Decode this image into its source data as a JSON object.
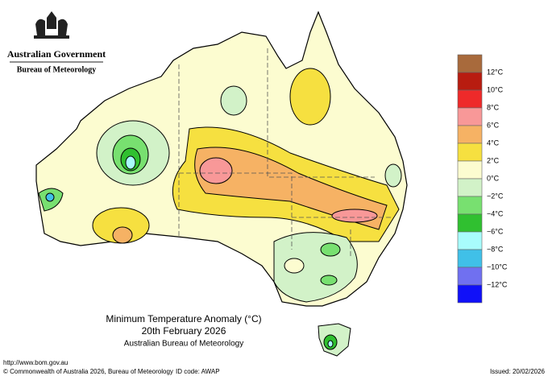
{
  "header": {
    "government": "Australian Government",
    "agency": "Bureau of Meteorology"
  },
  "legend": {
    "colors": [
      "#a86a3c",
      "#b81c10",
      "#ee2a2a",
      "#f89898",
      "#f6b264",
      "#f6e040",
      "#fcfcd0",
      "#d2f2c8",
      "#78e070",
      "#30c030",
      "#a8fcfc",
      "#40c0e8",
      "#7070f0",
      "#1010f8"
    ],
    "labels": [
      "12°C",
      "10°C",
      "8°C",
      "6°C",
      "4°C",
      "2°C",
      "0°C",
      "−2°C",
      "−4°C",
      "−6°C",
      "−8°C",
      "−10°C",
      "−12°C"
    ]
  },
  "title": {
    "line1": "Minimum Temperature Anomaly (°C)",
    "line2": "20th February 2026",
    "line3": "Australian Bureau of Meteorology"
  },
  "footer": {
    "url": "http://www.bom.gov.au",
    "copyright": "© Commonwealth of Australia 2026, Bureau of Meteorology",
    "id_code": "ID code: AWAP",
    "issued": "Issued: 20/02/2026"
  }
}
